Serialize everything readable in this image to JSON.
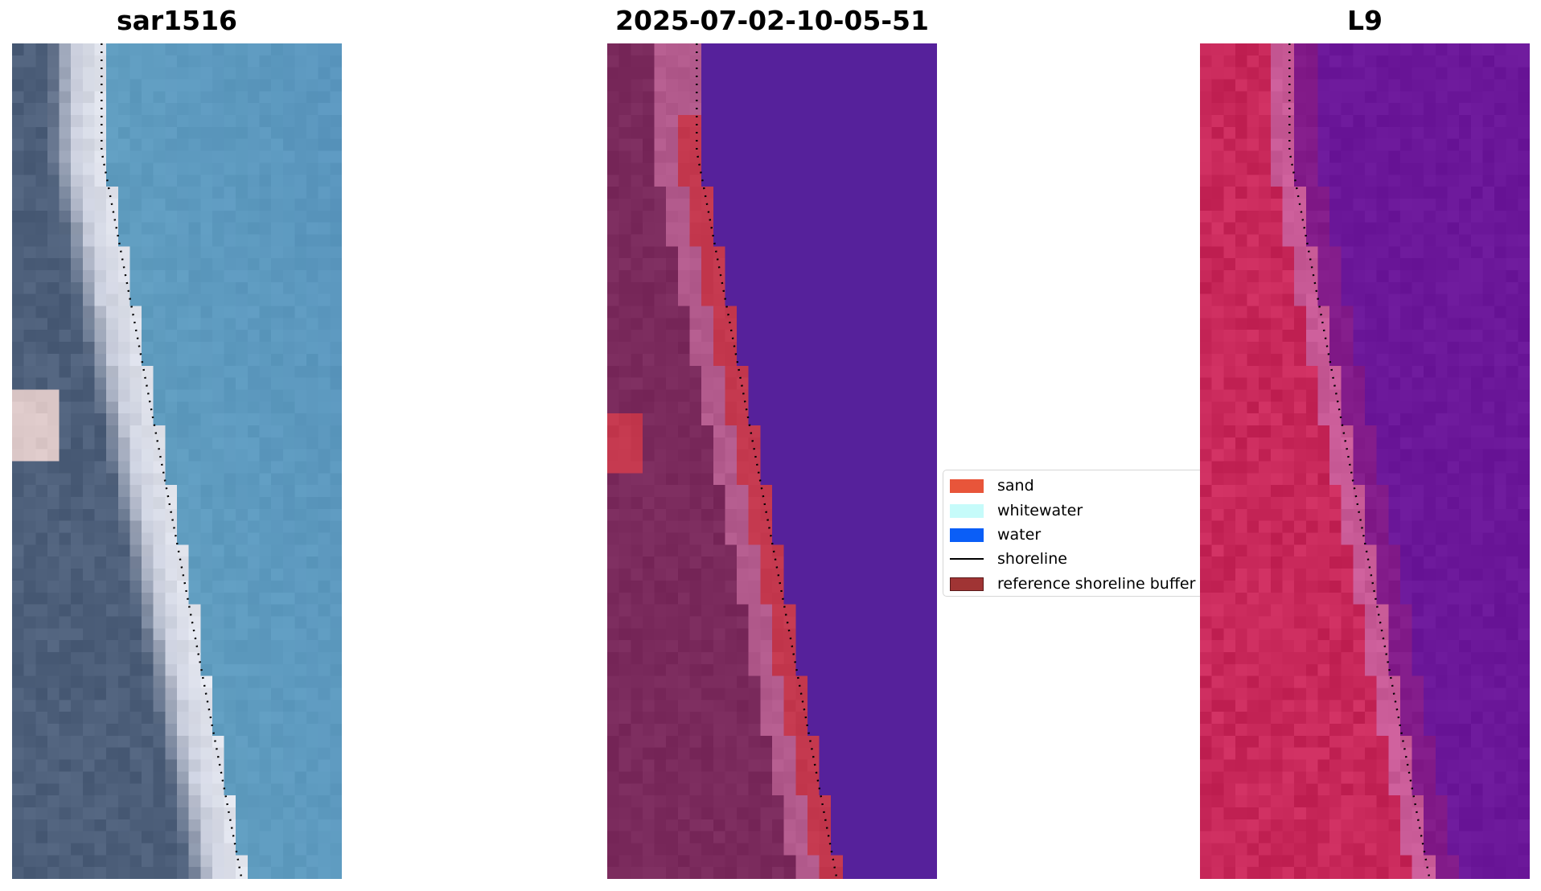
{
  "panels": [
    {
      "title": "sar1516"
    },
    {
      "title": "2025-07-02-10-05-51"
    },
    {
      "title": "L9"
    }
  ],
  "legend": {
    "items": [
      {
        "label": "sand",
        "color": "#e8553a",
        "kind": "patch"
      },
      {
        "label": "whitewater",
        "color": "#c6fbfa",
        "kind": "patch"
      },
      {
        "label": "water",
        "color": "#0a5ef7",
        "kind": "patch"
      },
      {
        "label": "shoreline",
        "color": "#000000",
        "kind": "line"
      },
      {
        "label": "reference shoreline buffer",
        "color": "#a03434",
        "kind": "patch"
      }
    ]
  },
  "colors": {
    "rgb_water": "#5f9cbf",
    "rgb_beach": "#e4e6ee",
    "rgb_land": "#4d5f7a",
    "class_background": "#7a2a5c",
    "class_water_overlay": "#56219b",
    "class_buffer_band": "#b25a8c",
    "class_sand": "#c4384e",
    "ndwi_land": "#c8285a",
    "ndwi_water": "#6b1799",
    "shoreline": "#000000"
  }
}
